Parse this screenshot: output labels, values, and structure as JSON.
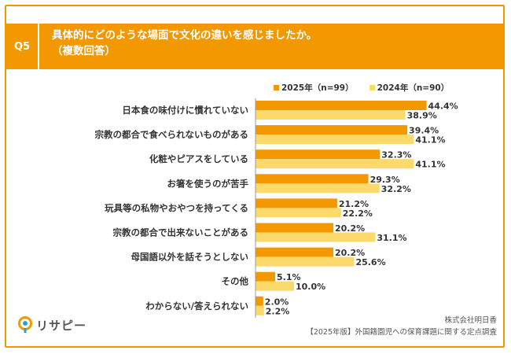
{
  "question": {
    "number": "Q5",
    "line1": "具体的にどのような場面で文化の違いを感じましたか。",
    "line2": "（複数回答）"
  },
  "legend": {
    "series_2025": "2025年（n=99）",
    "series_2024": "2024年（n=90）"
  },
  "colors": {
    "accent": "#f39800",
    "series_2025": "#f39800",
    "series_2024": "#fcd96b"
  },
  "chart_data": {
    "type": "bar",
    "orientation": "horizontal",
    "categories": [
      "日本食の味付けに慣れていない",
      "宗教の都合で食べられないものがある",
      "化粧やピアスをしている",
      "お箸を使うのが苦手",
      "玩具等の私物やおやつを持ってくる",
      "宗教の都合で出来ないことがある",
      "母国語以外を話そうとしない",
      "その他",
      "わからない/答えられない"
    ],
    "series": [
      {
        "name": "2025年（n=99）",
        "values": [
          44.4,
          39.4,
          32.3,
          29.3,
          21.2,
          20.2,
          20.2,
          5.1,
          2.0
        ],
        "labels": [
          "44.4%",
          "39.4%",
          "32.3%",
          "29.3%",
          "21.2%",
          "20.2%",
          "20.2%",
          "5.1%",
          "2.0%"
        ]
      },
      {
        "name": "2024年（n=90）",
        "values": [
          38.9,
          41.1,
          41.1,
          32.2,
          22.2,
          31.1,
          25.6,
          10.0,
          2.2
        ],
        "labels": [
          "38.9%",
          "41.1%",
          "41.1%",
          "32.2%",
          "22.2%",
          "31.1%",
          "25.6%",
          "10.0%",
          "2.2%"
        ]
      }
    ],
    "legend_position": "top-right",
    "grid": false
  },
  "footer": {
    "logo_text": "リサピー",
    "company": "株式会社明日香",
    "source": "【2025年版】外国籍園児への保育課題に関する定点調査"
  }
}
